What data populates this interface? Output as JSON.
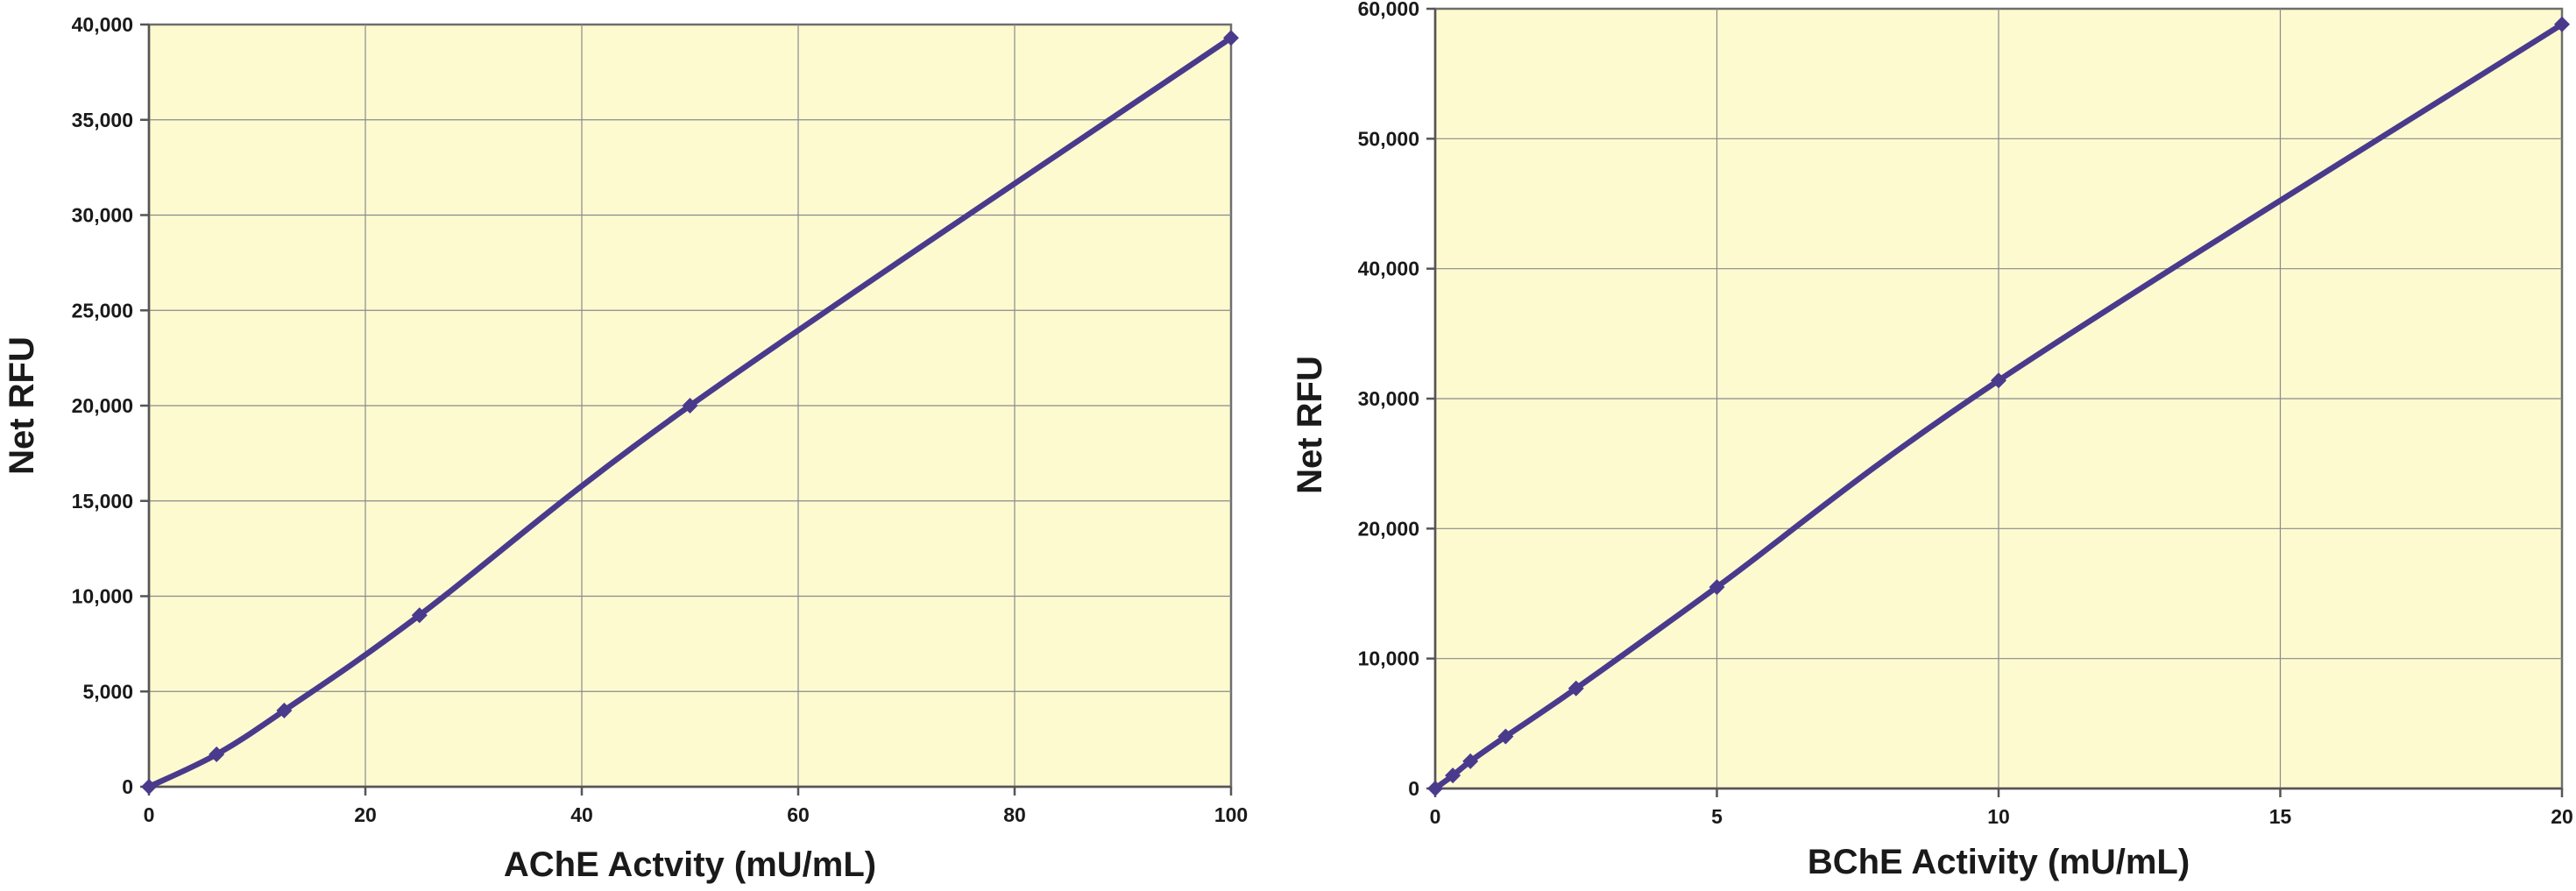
{
  "chart_data": [
    {
      "type": "line",
      "title": "",
      "xlabel": "AChE Actvity (mU/mL)",
      "ylabel": "Net RFU",
      "xlim": [
        0,
        100
      ],
      "ylim": [
        0,
        40000
      ],
      "xticks": [
        0,
        20,
        40,
        60,
        80,
        100
      ],
      "yticks": [
        0,
        5000,
        10000,
        15000,
        20000,
        25000,
        30000,
        35000,
        40000
      ],
      "xtick_labels": [
        "0",
        "20",
        "40",
        "60",
        "80",
        "100"
      ],
      "ytick_labels": [
        "0",
        "5,000",
        "10,000",
        "15,000",
        "20,000",
        "25,000",
        "30,000",
        "35,000",
        "40,000"
      ],
      "grid": true,
      "legend": "none",
      "series": [
        {
          "x": [
            0,
            6.25,
            12.5,
            25,
            50,
            100
          ],
          "y": [
            0,
            1700,
            4000,
            9000,
            20000,
            39300
          ],
          "color": "#4a3a8c"
        }
      ]
    },
    {
      "type": "line",
      "title": "",
      "xlabel": "BChE Activity (mU/mL)",
      "ylabel": "Net RFU",
      "xlim": [
        0,
        20
      ],
      "ylim": [
        0,
        60000
      ],
      "xticks": [
        0,
        5,
        10,
        15,
        20
      ],
      "yticks": [
        0,
        10000,
        20000,
        30000,
        40000,
        50000,
        60000
      ],
      "xtick_labels": [
        "0",
        "5",
        "10",
        "15",
        "20"
      ],
      "ytick_labels": [
        "0",
        "10,000",
        "20,000",
        "30,000",
        "40,000",
        "50,000",
        "60,000"
      ],
      "grid": true,
      "legend": "none",
      "series": [
        {
          "x": [
            0,
            0.3125,
            0.625,
            1.25,
            2.5,
            5,
            10,
            20
          ],
          "y": [
            0,
            1000,
            2100,
            4000,
            7700,
            15500,
            31400,
            58800
          ],
          "color": "#4a3a8c"
        }
      ]
    }
  ]
}
